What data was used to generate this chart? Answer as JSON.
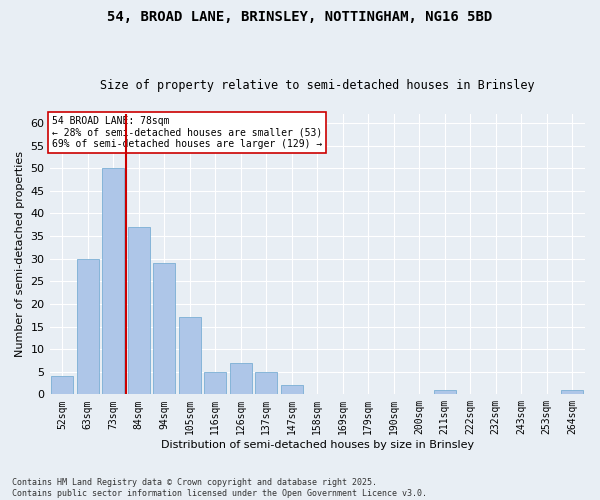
{
  "title1": "54, BROAD LANE, BRINSLEY, NOTTINGHAM, NG16 5BD",
  "title2": "Size of property relative to semi-detached houses in Brinsley",
  "xlabel": "Distribution of semi-detached houses by size in Brinsley",
  "ylabel": "Number of semi-detached properties",
  "bins": [
    "52sqm",
    "63sqm",
    "73sqm",
    "84sqm",
    "94sqm",
    "105sqm",
    "116sqm",
    "126sqm",
    "137sqm",
    "147sqm",
    "158sqm",
    "169sqm",
    "179sqm",
    "190sqm",
    "200sqm",
    "211sqm",
    "222sqm",
    "232sqm",
    "243sqm",
    "253sqm",
    "264sqm"
  ],
  "values": [
    4,
    30,
    50,
    37,
    29,
    17,
    5,
    7,
    5,
    2,
    0,
    0,
    0,
    0,
    0,
    1,
    0,
    0,
    0,
    0,
    1
  ],
  "bar_color": "#aec6e8",
  "bar_edge_color": "#7aafd4",
  "vline_x_index": 2,
  "vline_color": "#cc0000",
  "ylim": [
    0,
    62
  ],
  "yticks": [
    0,
    5,
    10,
    15,
    20,
    25,
    30,
    35,
    40,
    45,
    50,
    55,
    60
  ],
  "annotation_text": "54 BROAD LANE: 78sqm\n← 28% of semi-detached houses are smaller (53)\n69% of semi-detached houses are larger (129) →",
  "annotation_box_color": "#ffffff",
  "annotation_box_edge": "#cc0000",
  "footer1": "Contains HM Land Registry data © Crown copyright and database right 2025.",
  "footer2": "Contains public sector information licensed under the Open Government Licence v3.0.",
  "bg_color": "#e8eef4",
  "grid_color": "#ffffff"
}
